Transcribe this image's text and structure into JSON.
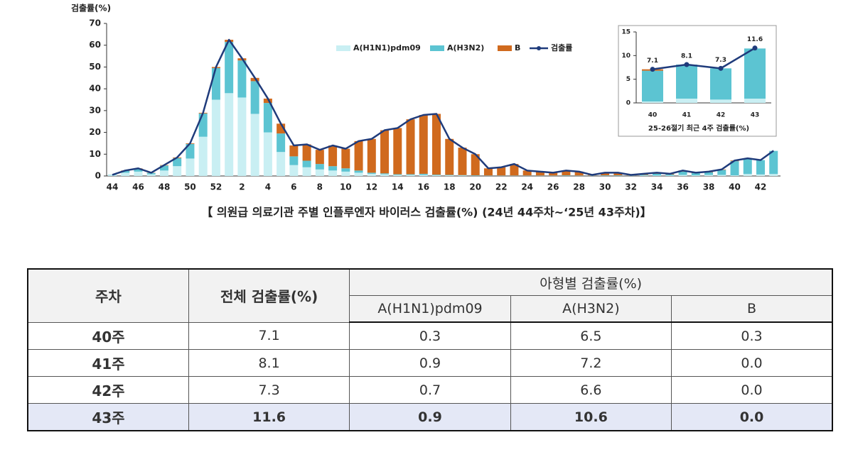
{
  "chart_data": [
    {
      "type": "bar",
      "stacked": true,
      "ylabel": "검출률(%)",
      "caption": "【 의원급 의료기관 주별 인플루엔자 바이러스 검출률(%) (24년 44주차~‘25년 43주차)】",
      "categories": [
        "44",
        null,
        "46",
        null,
        "48",
        null,
        "50",
        null,
        "52",
        null,
        "2",
        null,
        "4",
        null,
        "6",
        null,
        "8",
        null,
        "10",
        null,
        "12",
        null,
        "14",
        null,
        "16",
        null,
        "18",
        null,
        "20",
        null,
        "22",
        null,
        "24",
        null,
        "26",
        null,
        "28",
        null,
        "30",
        null,
        "32",
        null,
        "34",
        null,
        "36",
        null,
        "38",
        null,
        "40",
        null,
        "42",
        null
      ],
      "ylim": [
        0,
        70
      ],
      "yticks": [
        0,
        10,
        20,
        30,
        40,
        50,
        60,
        70
      ],
      "legend": "top",
      "series": [
        {
          "name": "A(H1N1)pdm09",
          "color": "#c9eff3",
          "values": [
            0.3,
            1.5,
            2,
            0.8,
            2.5,
            4.5,
            8,
            18,
            35,
            38,
            36,
            28.5,
            20,
            11,
            5,
            4,
            3,
            2.5,
            2,
            1.5,
            1,
            0.8,
            0.5,
            0.5,
            0.5,
            0.3,
            0.3,
            0.2,
            0.1,
            0.1,
            0.1,
            0.1,
            0.1,
            0.1,
            0.1,
            0.1,
            0.1,
            0.1,
            0.1,
            0.1,
            0.1,
            0.2,
            0.2,
            0.2,
            0.5,
            0.3,
            0.5,
            0.5,
            0.3,
            0.9,
            0.7,
            0.9
          ]
        },
        {
          "name": "A(H3N2)",
          "color": "#5cc4d2",
          "values": [
            0.2,
            0.8,
            1.3,
            0.6,
            2.3,
            3.7,
            6.7,
            10.7,
            14.5,
            23.5,
            17,
            15,
            13.5,
            8.5,
            4,
            3,
            2.5,
            2,
            1.5,
            1,
            0.5,
            0.4,
            0.3,
            0.3,
            0.5,
            0.3,
            0.2,
            0.2,
            0.2,
            0.1,
            0.1,
            0.1,
            0.1,
            0.1,
            0.1,
            0.2,
            0.1,
            0.1,
            0.2,
            0.2,
            0.1,
            0.3,
            0.8,
            0.5,
            1.5,
            1,
            1.2,
            2.3,
            6.5,
            7.2,
            6.6,
            10.6
          ]
        },
        {
          "name": "B",
          "color": "#d06a1e",
          "values": [
            0,
            0.2,
            0.2,
            0.1,
            0.2,
            0.3,
            0.3,
            0.3,
            0.5,
            1,
            1,
            1.5,
            2,
            4.5,
            5,
            7.5,
            6.5,
            9.5,
            9,
            13.5,
            15.5,
            19.8,
            21.2,
            25.2,
            27,
            27.9,
            16.5,
            12.6,
            9.7,
            3.3,
            3.8,
            5.3,
            2.3,
            1.8,
            1.3,
            2.2,
            1.8,
            0.3,
            1.2,
            1.2,
            0.3,
            0.5,
            0.5,
            0.3,
            0.5,
            0.2,
            0.3,
            0.2,
            0.3,
            0,
            0,
            0
          ]
        },
        {
          "name": "검출률",
          "type": "line",
          "color": "#1f3b7b",
          "values": [
            0.5,
            2.5,
            3.5,
            1.5,
            5,
            8.5,
            15,
            29,
            50,
            62.5,
            54,
            45,
            35.5,
            24,
            14,
            14.5,
            12,
            14,
            12.5,
            16,
            17,
            21,
            22,
            26,
            28,
            28.5,
            17,
            13,
            10,
            3.5,
            4,
            5.5,
            2.5,
            2,
            1.5,
            2.5,
            2,
            0.5,
            1.5,
            1.5,
            0.5,
            1,
            1.5,
            1,
            2.5,
            1.5,
            2,
            3,
            7.1,
            8.1,
            7.3,
            11.6
          ]
        }
      ]
    },
    {
      "type": "bar",
      "stacked": true,
      "caption": "25-26절기 최근 4주 검출률(%)",
      "categories": [
        "40",
        "41",
        "42",
        "43"
      ],
      "ylim": [
        0,
        15
      ],
      "yticks": [
        0,
        5,
        10,
        15
      ],
      "series": [
        {
          "name": "A(H1N1)pdm09",
          "color": "#c9eff3",
          "values": [
            0.3,
            0.9,
            0.7,
            0.9
          ]
        },
        {
          "name": "A(H3N2)",
          "color": "#5cc4d2",
          "values": [
            6.5,
            7.2,
            6.6,
            10.6
          ]
        },
        {
          "name": "B",
          "color": "#d06a1e",
          "values": [
            0.3,
            0,
            0,
            0
          ]
        },
        {
          "name": "검출률",
          "type": "line",
          "color": "#1f3b7b",
          "markers": true,
          "data_labels": true,
          "values": [
            7.1,
            8.1,
            7.3,
            11.6
          ]
        }
      ]
    }
  ],
  "table": {
    "header": {
      "week": "주차",
      "total": "전체 검출률(%)",
      "subtype": "아형별 검출률(%)",
      "columns": [
        "A(H1N1)pdm09",
        "A(H3N2)",
        "B"
      ]
    },
    "rows": [
      [
        "40주",
        "7.1",
        "0.3",
        "6.5",
        "0.3"
      ],
      [
        "41주",
        "8.1",
        "0.9",
        "7.2",
        "0.0"
      ],
      [
        "42주",
        "7.3",
        "0.7",
        "6.6",
        "0.0"
      ],
      [
        "43주",
        "11.6",
        "0.9",
        "10.6",
        "0.0"
      ]
    ],
    "highlight_row": 3
  }
}
